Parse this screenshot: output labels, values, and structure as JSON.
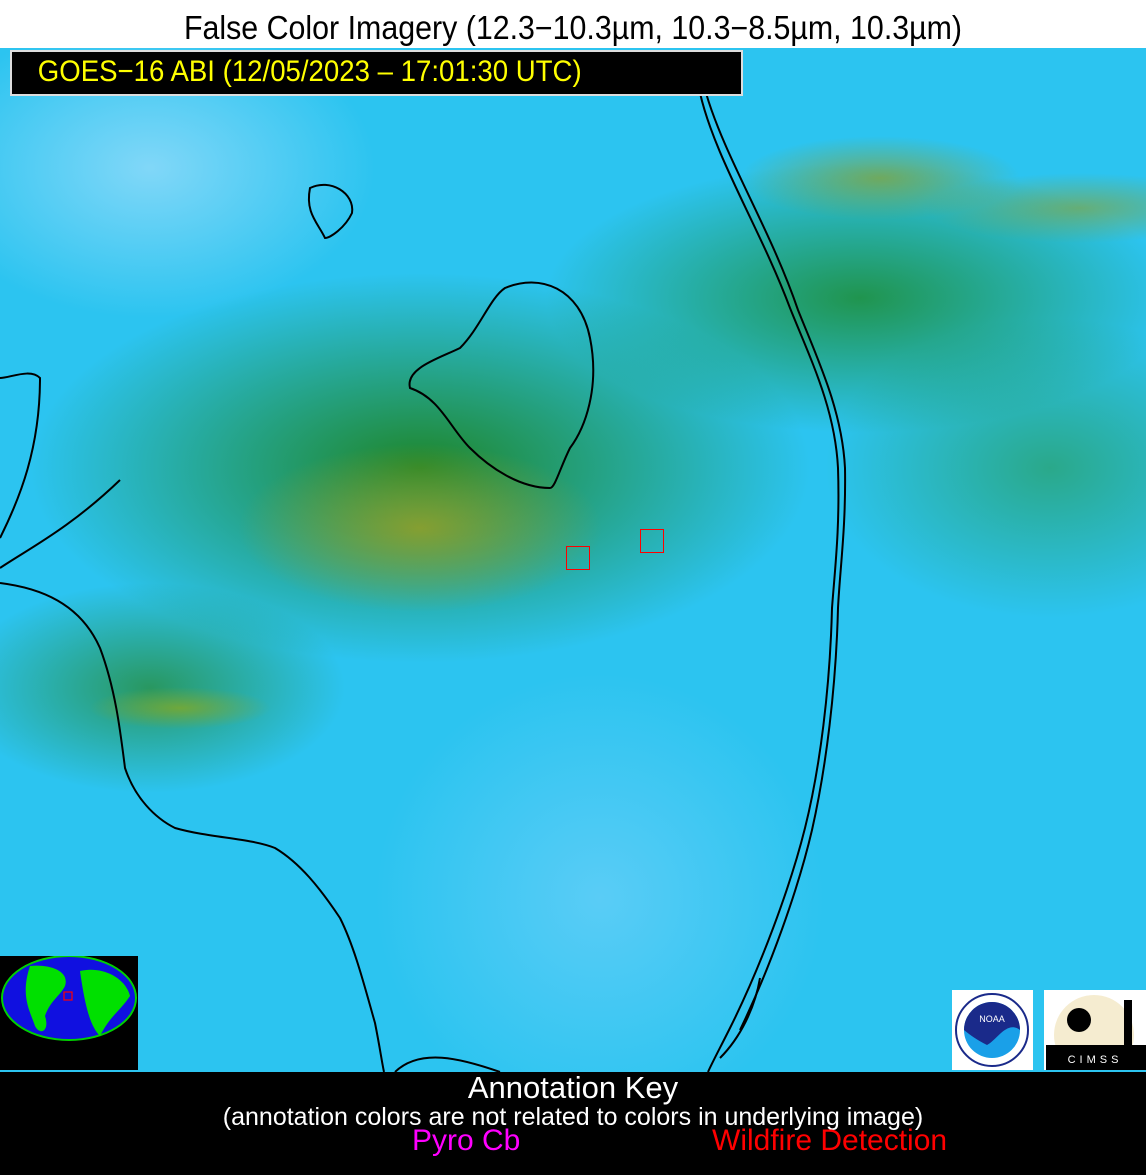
{
  "title": "False Color Imagery (12.3−10.3µm, 10.3−8.5µm, 10.3µm)",
  "satellite_label": "GOES−16 ABI (12/05/2023 – 17:01:30 UTC)",
  "annotation_key": {
    "heading": "Annotation Key",
    "note": "(annotation colors are not related to colors in underlying image)",
    "items": [
      {
        "label": "Pyro Cb",
        "color": "#ff00ff"
      },
      {
        "label": "Wildfire Detection",
        "color": "#ff0000"
      }
    ]
  },
  "wildfire_detections": 2,
  "logos": {
    "noaa": "NOAA",
    "cimss": "CIMSS"
  },
  "colors": {
    "label_text": "#ffff00",
    "imagery_base": "#2cc4f0",
    "vegetation": "#1e8c1e"
  }
}
